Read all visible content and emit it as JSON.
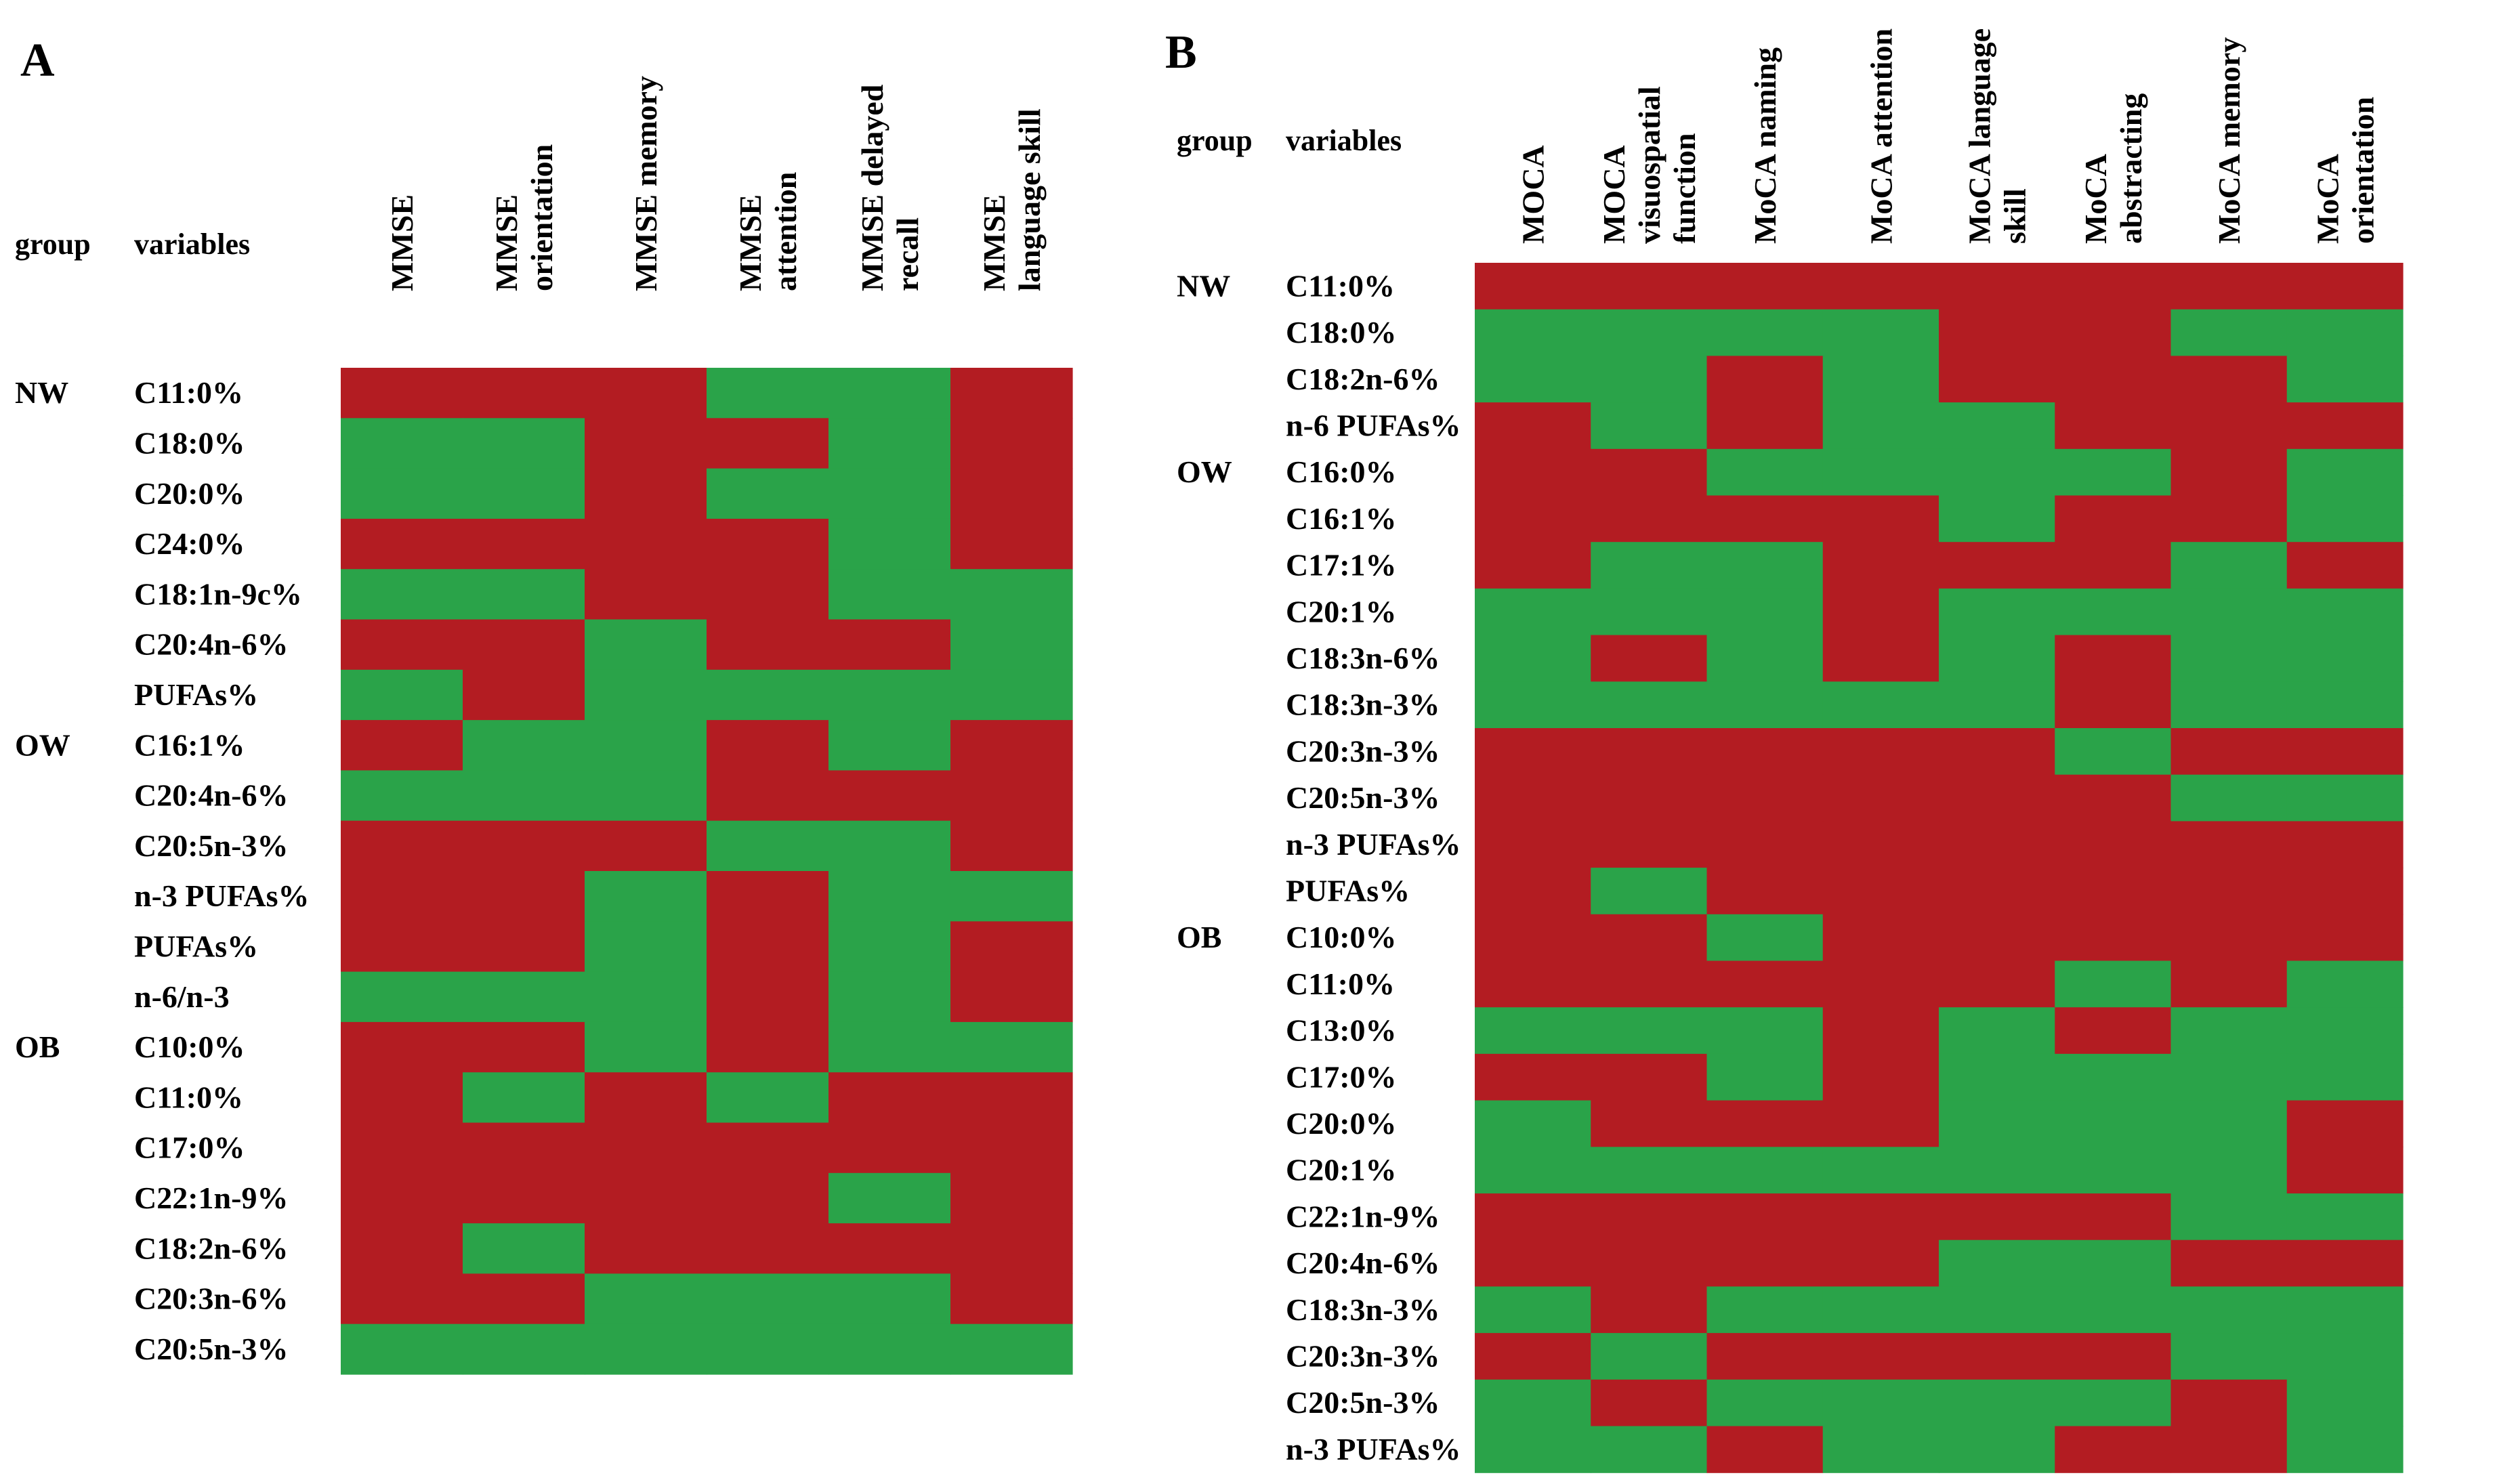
{
  "colors": {
    "positive": "#b31c22",
    "negative": "#2aa349"
  },
  "chart_data": [
    {
      "type": "heatmap",
      "panel": "A",
      "header": {
        "group": "group",
        "variables": "variables"
      },
      "columns": [
        [
          "MMSE"
        ],
        [
          "MMSE",
          "orientation"
        ],
        [
          "MMSE memory"
        ],
        [
          "MMSE",
          "attention"
        ],
        [
          "MMSE delayed",
          "recall"
        ],
        [
          "MMSE",
          "language skill"
        ]
      ],
      "rows": [
        {
          "group": "NW",
          "variable": "C11:0%"
        },
        {
          "group": "",
          "variable": "C18:0%"
        },
        {
          "group": "",
          "variable": "C20:0%"
        },
        {
          "group": "",
          "variable": "C24:0%"
        },
        {
          "group": "",
          "variable": "C18:1n-9c%"
        },
        {
          "group": "",
          "variable": "C20:4n-6%"
        },
        {
          "group": "",
          "variable": "PUFAs%"
        },
        {
          "group": "OW",
          "variable": "C16:1%"
        },
        {
          "group": "",
          "variable": "C20:4n-6%"
        },
        {
          "group": "",
          "variable": "C20:5n-3%"
        },
        {
          "group": "",
          "variable": "n-3 PUFAs%"
        },
        {
          "group": "",
          "variable": "PUFAs%"
        },
        {
          "group": "",
          "variable": "n-6/n-3"
        },
        {
          "group": "OB",
          "variable": "C10:0%"
        },
        {
          "group": "",
          "variable": "C11:0%"
        },
        {
          "group": "",
          "variable": "C17:0%"
        },
        {
          "group": "",
          "variable": "C22:1n-9%"
        },
        {
          "group": "",
          "variable": "C18:2n-6%"
        },
        {
          "group": "",
          "variable": "C20:3n-6%"
        },
        {
          "group": "",
          "variable": "C20:5n-3%"
        }
      ],
      "values": [
        [
          "R",
          "R",
          "R",
          "G",
          "G",
          "R"
        ],
        [
          "G",
          "G",
          "R",
          "R",
          "G",
          "R"
        ],
        [
          "G",
          "G",
          "R",
          "G",
          "G",
          "R"
        ],
        [
          "R",
          "R",
          "R",
          "R",
          "G",
          "R"
        ],
        [
          "G",
          "G",
          "R",
          "R",
          "G",
          "G"
        ],
        [
          "R",
          "R",
          "G",
          "R",
          "R",
          "G"
        ],
        [
          "G",
          "R",
          "G",
          "G",
          "G",
          "G"
        ],
        [
          "R",
          "G",
          "G",
          "R",
          "G",
          "R"
        ],
        [
          "G",
          "G",
          "G",
          "R",
          "R",
          "R"
        ],
        [
          "R",
          "R",
          "R",
          "G",
          "G",
          "R"
        ],
        [
          "R",
          "R",
          "G",
          "R",
          "G",
          "G"
        ],
        [
          "R",
          "R",
          "G",
          "R",
          "G",
          "R"
        ],
        [
          "G",
          "G",
          "G",
          "R",
          "G",
          "R"
        ],
        [
          "R",
          "R",
          "G",
          "R",
          "G",
          "G"
        ],
        [
          "R",
          "G",
          "R",
          "G",
          "R",
          "R"
        ],
        [
          "R",
          "R",
          "R",
          "R",
          "R",
          "R"
        ],
        [
          "R",
          "R",
          "R",
          "R",
          "G",
          "R"
        ],
        [
          "R",
          "G",
          "R",
          "R",
          "R",
          "R"
        ],
        [
          "R",
          "R",
          "G",
          "G",
          "G",
          "R"
        ],
        [
          "G",
          "G",
          "G",
          "G",
          "G",
          "G"
        ]
      ]
    },
    {
      "type": "heatmap",
      "panel": "B",
      "header": {
        "group": "group",
        "variables": "variables"
      },
      "columns": [
        [
          "MOCA"
        ],
        [
          "MOCA",
          "visuospatial",
          "function"
        ],
        [
          "MoCA naming"
        ],
        [
          "MoCA attention"
        ],
        [
          "MoCA language",
          "skill"
        ],
        [
          "MoCA",
          "abstracting"
        ],
        [
          "MoCA memory"
        ],
        [
          "MoCA",
          "orientation"
        ]
      ],
      "rows": [
        {
          "group": "NW",
          "variable": "C11:0%"
        },
        {
          "group": "",
          "variable": "C18:0%"
        },
        {
          "group": "",
          "variable": "C18:2n-6%"
        },
        {
          "group": "",
          "variable": "n-6 PUFAs%"
        },
        {
          "group": "OW",
          "variable": "C16:0%"
        },
        {
          "group": "",
          "variable": "C16:1%"
        },
        {
          "group": "",
          "variable": "C17:1%"
        },
        {
          "group": "",
          "variable": "C20:1%"
        },
        {
          "group": "",
          "variable": "C18:3n-6%"
        },
        {
          "group": "",
          "variable": "C18:3n-3%"
        },
        {
          "group": "",
          "variable": "C20:3n-3%"
        },
        {
          "group": "",
          "variable": "C20:5n-3%"
        },
        {
          "group": "",
          "variable": "n-3 PUFAs%"
        },
        {
          "group": "",
          "variable": "PUFAs%"
        },
        {
          "group": "OB",
          "variable": "C10:0%"
        },
        {
          "group": "",
          "variable": "C11:0%"
        },
        {
          "group": "",
          "variable": "C13:0%"
        },
        {
          "group": "",
          "variable": "C17:0%"
        },
        {
          "group": "",
          "variable": "C20:0%"
        },
        {
          "group": "",
          "variable": "C20:1%"
        },
        {
          "group": "",
          "variable": "C22:1n-9%"
        },
        {
          "group": "",
          "variable": "C20:4n-6%"
        },
        {
          "group": "",
          "variable": "C18:3n-3%"
        },
        {
          "group": "",
          "variable": "C20:3n-3%"
        },
        {
          "group": "",
          "variable": "C20:5n-3%"
        },
        {
          "group": "",
          "variable": "n-3 PUFAs%"
        }
      ],
      "values": [
        [
          "R",
          "R",
          "R",
          "R",
          "R",
          "R",
          "R",
          "R"
        ],
        [
          "G",
          "G",
          "G",
          "G",
          "R",
          "R",
          "G",
          "G"
        ],
        [
          "G",
          "G",
          "R",
          "G",
          "R",
          "R",
          "R",
          "G"
        ],
        [
          "R",
          "G",
          "R",
          "G",
          "G",
          "R",
          "R",
          "R"
        ],
        [
          "R",
          "R",
          "G",
          "G",
          "G",
          "G",
          "R",
          "G"
        ],
        [
          "R",
          "R",
          "R",
          "R",
          "G",
          "R",
          "R",
          "G"
        ],
        [
          "R",
          "G",
          "G",
          "R",
          "R",
          "R",
          "G",
          "R"
        ],
        [
          "G",
          "G",
          "G",
          "R",
          "G",
          "G",
          "G",
          "G"
        ],
        [
          "G",
          "R",
          "G",
          "R",
          "G",
          "R",
          "G",
          "G"
        ],
        [
          "G",
          "G",
          "G",
          "G",
          "G",
          "R",
          "G",
          "G"
        ],
        [
          "R",
          "R",
          "R",
          "R",
          "R",
          "G",
          "R",
          "R"
        ],
        [
          "R",
          "R",
          "R",
          "R",
          "R",
          "R",
          "G",
          "G"
        ],
        [
          "R",
          "R",
          "R",
          "R",
          "R",
          "R",
          "R",
          "R"
        ],
        [
          "R",
          "G",
          "R",
          "R",
          "R",
          "R",
          "R",
          "R"
        ],
        [
          "R",
          "R",
          "G",
          "R",
          "R",
          "R",
          "R",
          "R"
        ],
        [
          "R",
          "R",
          "R",
          "R",
          "R",
          "G",
          "R",
          "G"
        ],
        [
          "G",
          "G",
          "G",
          "R",
          "G",
          "R",
          "G",
          "G"
        ],
        [
          "R",
          "R",
          "G",
          "R",
          "G",
          "G",
          "G",
          "G"
        ],
        [
          "G",
          "R",
          "R",
          "R",
          "G",
          "G",
          "G",
          "R"
        ],
        [
          "G",
          "G",
          "G",
          "G",
          "G",
          "G",
          "G",
          "R"
        ],
        [
          "R",
          "R",
          "R",
          "R",
          "R",
          "R",
          "G",
          "G"
        ],
        [
          "R",
          "R",
          "R",
          "R",
          "G",
          "G",
          "R",
          "R"
        ],
        [
          "G",
          "R",
          "G",
          "G",
          "G",
          "G",
          "G",
          "G"
        ],
        [
          "R",
          "G",
          "R",
          "R",
          "R",
          "R",
          "G",
          "G"
        ],
        [
          "G",
          "R",
          "G",
          "G",
          "G",
          "G",
          "R",
          "G"
        ],
        [
          "G",
          "G",
          "R",
          "G",
          "G",
          "R",
          "R",
          "G"
        ]
      ]
    }
  ]
}
